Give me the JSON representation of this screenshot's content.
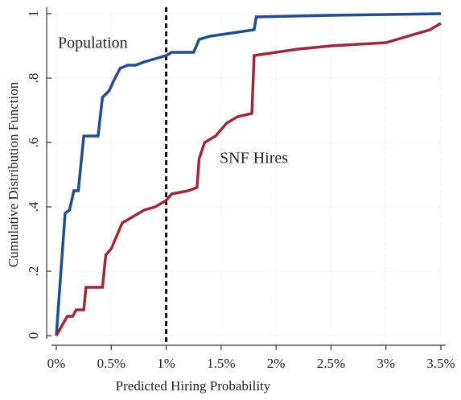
{
  "chart_data": {
    "type": "line",
    "ylabel": "Cumulative Distribution Function",
    "xlabel": "Predicted Hiring Probability",
    "xlim": [
      0,
      3.5
    ],
    "ylim": [
      0,
      1
    ],
    "xticks": [
      {
        "value": 0,
        "label": "0%"
      },
      {
        "value": 0.5,
        "label": "0.5%"
      },
      {
        "value": 1,
        "label": "1%"
      },
      {
        "value": 1.5,
        "label": "1.5%"
      },
      {
        "value": 2,
        "label": "2%"
      },
      {
        "value": 2.5,
        "label": "2.5%"
      },
      {
        "value": 3,
        "label": "3%"
      },
      {
        "value": 3.5,
        "label": "3.5%"
      }
    ],
    "yticks": [
      0,
      {
        "value": 0.2,
        "label": ".2"
      },
      {
        "value": 0.4,
        "label": ".4"
      },
      {
        "value": 0.6,
        "label": ".6"
      },
      {
        "value": 0.8,
        "label": ".8"
      },
      1
    ],
    "grid": true,
    "vline": 1,
    "series": [
      {
        "name": "Population",
        "color": "#1f4e8c",
        "x": [
          0,
          0.08,
          0.12,
          0.16,
          0.2,
          0.25,
          0.38,
          0.42,
          0.48,
          0.52,
          0.58,
          0.65,
          0.72,
          0.8,
          0.9,
          1.0,
          1.05,
          1.25,
          1.3,
          1.4,
          1.6,
          1.8,
          1.82,
          2.5,
          3.5
        ],
        "values": [
          0,
          0.38,
          0.39,
          0.45,
          0.45,
          0.62,
          0.62,
          0.74,
          0.76,
          0.79,
          0.83,
          0.84,
          0.84,
          0.85,
          0.86,
          0.87,
          0.88,
          0.88,
          0.92,
          0.93,
          0.94,
          0.95,
          0.99,
          0.995,
          1.0
        ]
      },
      {
        "name": "SNF Hires",
        "color": "#9b2b3a",
        "x": [
          0,
          0.1,
          0.15,
          0.18,
          0.25,
          0.27,
          0.42,
          0.45,
          0.5,
          0.55,
          0.6,
          0.7,
          0.8,
          0.9,
          1.0,
          1.05,
          1.2,
          1.28,
          1.3,
          1.35,
          1.45,
          1.55,
          1.65,
          1.78,
          1.8,
          2.0,
          2.2,
          2.5,
          3.0,
          3.2,
          3.4,
          3.5
        ],
        "values": [
          0,
          0.06,
          0.06,
          0.08,
          0.08,
          0.15,
          0.15,
          0.25,
          0.27,
          0.31,
          0.35,
          0.37,
          0.39,
          0.4,
          0.42,
          0.44,
          0.45,
          0.46,
          0.55,
          0.6,
          0.62,
          0.66,
          0.68,
          0.69,
          0.87,
          0.88,
          0.89,
          0.9,
          0.91,
          0.93,
          0.95,
          0.97
        ]
      }
    ]
  }
}
